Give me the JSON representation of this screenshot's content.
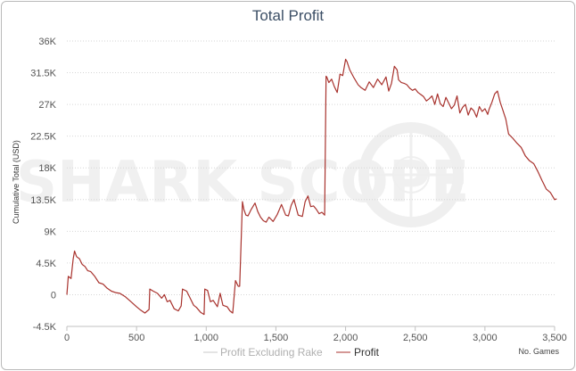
{
  "chart_data": {
    "type": "line",
    "title": "Total Profit",
    "ylabel": "Cumulative Total (USD)",
    "xlabel": "",
    "x_note": "No. Games",
    "xlim": [
      0,
      3500
    ],
    "ylim": [
      -4500,
      36000
    ],
    "x_ticks": [
      0,
      500,
      1000,
      1500,
      2000,
      2500,
      3000,
      3500
    ],
    "x_tick_labels": [
      "0",
      "500",
      "1,000",
      "1,500",
      "2,000",
      "2,500",
      "3,000",
      "3,500"
    ],
    "y_ticks": [
      -4500,
      0,
      4500,
      9000,
      13500,
      18000,
      22500,
      27000,
      31500,
      36000
    ],
    "y_tick_labels": [
      "-4.5K",
      "0",
      "4.5K",
      "9K",
      "13.5K",
      "18K",
      "22.5K",
      "27K",
      "31.5K",
      "36K"
    ],
    "grid": true,
    "legend_position": "bottom-center",
    "series": [
      {
        "name": "Profit Excluding Rake",
        "color": "#c8c8c8",
        "x": [],
        "y": []
      },
      {
        "name": "Profit",
        "color": "#a8322d",
        "x": [
          0,
          10,
          30,
          45,
          55,
          70,
          90,
          110,
          130,
          150,
          170,
          200,
          230,
          260,
          290,
          320,
          350,
          380,
          420,
          460,
          500,
          530,
          560,
          590,
          595,
          620,
          650,
          680,
          700,
          720,
          740,
          770,
          800,
          820,
          830,
          860,
          890,
          910,
          930,
          960,
          985,
          990,
          1010,
          1030,
          1050,
          1080,
          1100,
          1120,
          1150,
          1170,
          1190,
          1210,
          1230,
          1240,
          1260,
          1270,
          1285,
          1300,
          1320,
          1350,
          1370,
          1390,
          1410,
          1430,
          1450,
          1480,
          1510,
          1540,
          1570,
          1590,
          1610,
          1630,
          1660,
          1690,
          1710,
          1730,
          1750,
          1770,
          1790,
          1810,
          1830,
          1850,
          1860,
          1865,
          1880,
          1900,
          1920,
          1940,
          1960,
          1980,
          2000,
          2010,
          2030,
          2060,
          2090,
          2110,
          2140,
          2170,
          2200,
          2230,
          2260,
          2290,
          2310,
          2330,
          2350,
          2370,
          2380,
          2400,
          2420,
          2440,
          2460,
          2480,
          2500,
          2520,
          2540,
          2560,
          2580,
          2600,
          2620,
          2640,
          2660,
          2680,
          2700,
          2720,
          2740,
          2760,
          2780,
          2800,
          2820,
          2840,
          2860,
          2880,
          2900,
          2920,
          2940,
          2960,
          2980,
          3000,
          3020,
          3030,
          3050,
          3070,
          3090,
          3110,
          3130,
          3150,
          3170,
          3200,
          3230,
          3260,
          3290,
          3320,
          3350,
          3380,
          3410,
          3440,
          3470,
          3500,
          3515
        ],
        "y": [
          0,
          2600,
          2300,
          5000,
          6200,
          5400,
          5100,
          4300,
          4000,
          3400,
          3300,
          2600,
          1700,
          1500,
          900,
          500,
          300,
          200,
          -300,
          -1000,
          -1700,
          -2200,
          -2600,
          -2100,
          800,
          500,
          200,
          -500,
          0,
          -1000,
          -800,
          -2000,
          -2300,
          -1600,
          800,
          500,
          -700,
          -1500,
          -1800,
          -2500,
          -2800,
          800,
          600,
          -1000,
          -800,
          -1700,
          200,
          -1500,
          -1700,
          -2300,
          -2600,
          2000,
          1200,
          1200,
          13200,
          12100,
          11300,
          11200,
          12000,
          13000,
          11800,
          11000,
          10500,
          10300,
          11000,
          10400,
          11400,
          12800,
          11300,
          11200,
          12700,
          13500,
          11300,
          11100,
          13200,
          14000,
          12500,
          12600,
          12100,
          11500,
          11700,
          11300,
          31000,
          30900,
          30100,
          30600,
          29500,
          28700,
          31300,
          31100,
          33400,
          33100,
          31900,
          30800,
          29800,
          29400,
          29000,
          30200,
          29400,
          30600,
          29800,
          30900,
          28900,
          30000,
          32400,
          31900,
          30500,
          30100,
          30000,
          29800,
          29300,
          29000,
          29200,
          28700,
          28400,
          28100,
          27500,
          27800,
          28200,
          27000,
          28500,
          27100,
          26700,
          28000,
          27200,
          26400,
          26900,
          28200,
          25800,
          26600,
          27000,
          25500,
          26500,
          26100,
          25200,
          26700,
          26000,
          26400,
          25600,
          26300,
          27300,
          28500,
          28900,
          27300,
          26100,
          24900,
          22800,
          22200,
          21500,
          20900,
          19700,
          19000,
          18600,
          17500,
          16200,
          15000,
          14500,
          13500,
          13600
        ]
      }
    ]
  },
  "legend": {
    "items": [
      {
        "label": "Profit Excluding Rake",
        "color": "#c8c8c8"
      },
      {
        "label": "Profit",
        "color": "#a8322d"
      }
    ]
  },
  "watermark": "SHARK SCOPE"
}
